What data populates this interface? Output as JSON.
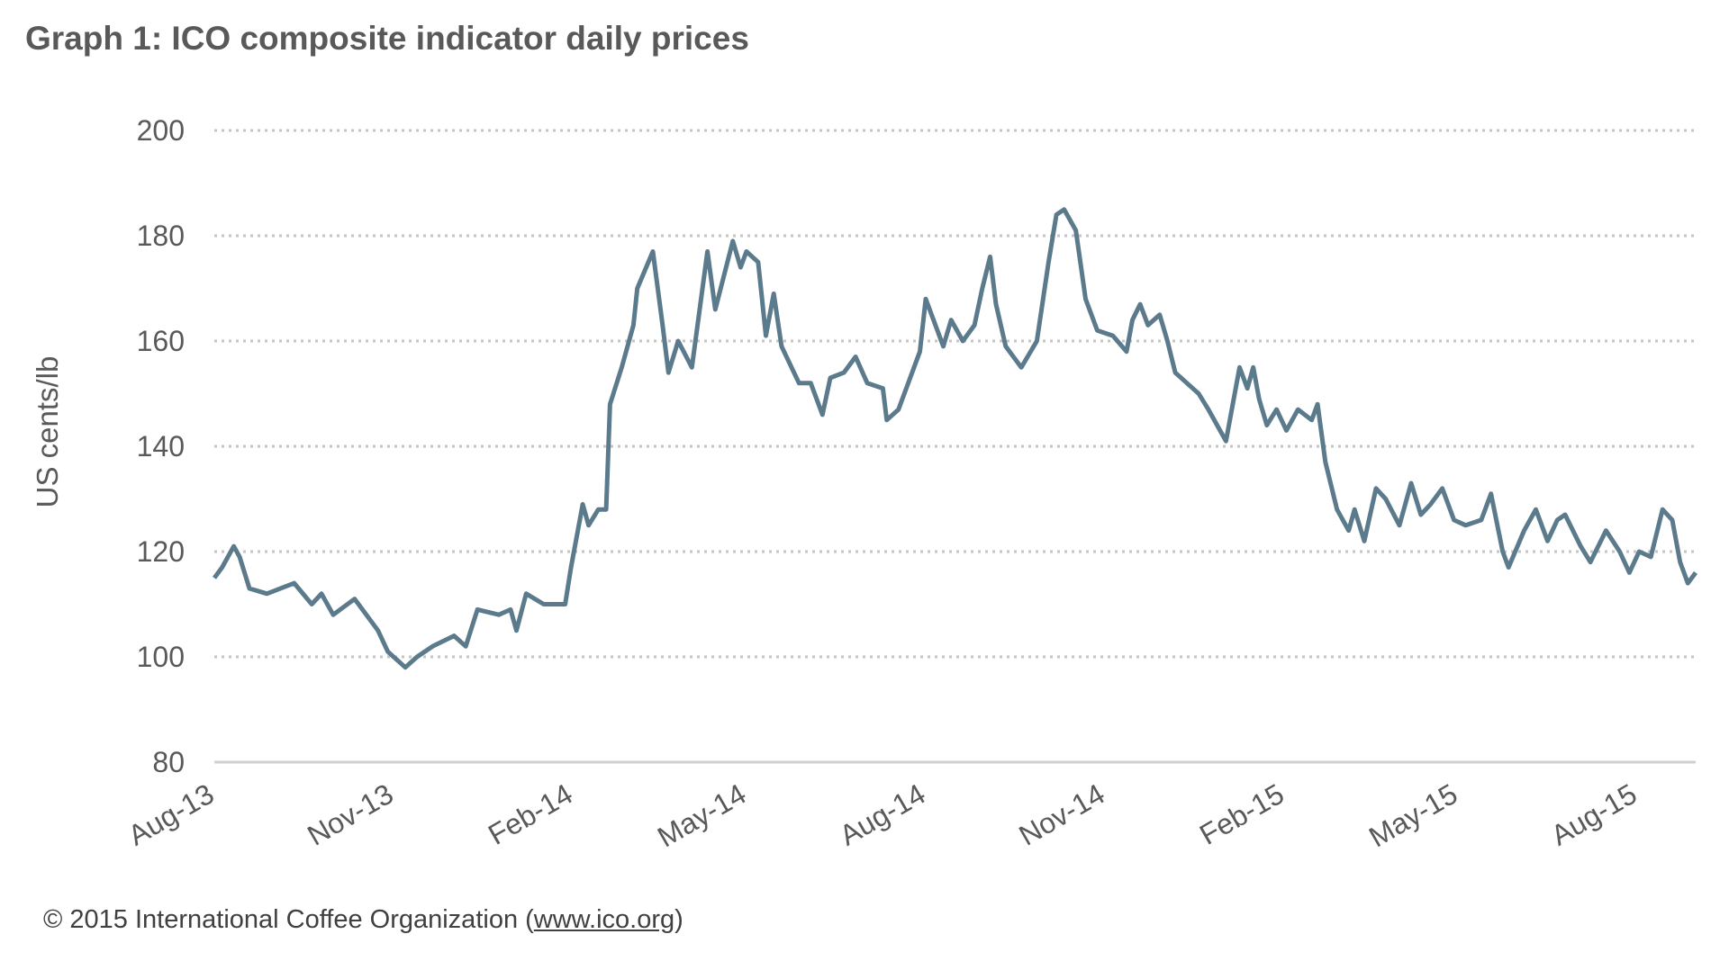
{
  "chart_data": {
    "type": "line",
    "title": "Graph 1: ICO composite indicator daily prices",
    "xlabel": "",
    "ylabel": "US cents/lb",
    "xlim": [
      "2013-08-01",
      "2015-08-31"
    ],
    "ylim": [
      80,
      200
    ],
    "yticks": [
      "80",
      "100",
      "120",
      "140",
      "160",
      "180",
      "200"
    ],
    "xticks": [
      {
        "date": "2013-08-01",
        "label": "Aug-13"
      },
      {
        "date": "2013-11-01",
        "label": "Nov-13"
      },
      {
        "date": "2014-02-01",
        "label": "Feb-14"
      },
      {
        "date": "2014-05-01",
        "label": "May-14"
      },
      {
        "date": "2014-08-01",
        "label": "Aug-14"
      },
      {
        "date": "2014-11-01",
        "label": "Nov-14"
      },
      {
        "date": "2015-02-01",
        "label": "Feb-15"
      },
      {
        "date": "2015-05-01",
        "label": "May-15"
      },
      {
        "date": "2015-08-01",
        "label": "Aug-15"
      }
    ],
    "grid": "horizontal dotted",
    "line_color": "#5b7a8c",
    "series": [
      {
        "x": [
          "2013-08-01",
          "2013-08-05",
          "2013-08-11",
          "2013-08-14",
          "2013-08-19",
          "2013-08-28",
          "2013-09-11",
          "2013-09-20",
          "2013-09-25",
          "2013-10-01",
          "2013-10-12",
          "2013-10-24",
          "2013-10-29",
          "2013-11-07",
          "2013-11-13",
          "2013-11-21",
          "2013-12-02",
          "2013-12-08",
          "2013-12-14",
          "2013-12-25",
          "2013-12-31",
          "2014-01-03",
          "2014-01-08",
          "2014-01-17",
          "2014-01-28",
          "2014-01-31",
          "2014-02-06",
          "2014-02-09",
          "2014-02-14",
          "2014-02-18",
          "2014-02-20",
          "2014-02-26",
          "2014-03-04",
          "2014-03-06",
          "2014-03-14",
          "2014-03-19",
          "2014-03-22",
          "2014-03-27",
          "2014-04-03",
          "2014-04-11",
          "2014-04-15",
          "2014-04-24",
          "2014-04-28",
          "2014-05-01",
          "2014-05-07",
          "2014-05-11",
          "2014-05-15",
          "2014-05-19",
          "2014-05-28",
          "2014-06-03",
          "2014-06-09",
          "2014-06-13",
          "2014-06-20",
          "2014-06-26",
          "2014-07-02",
          "2014-07-10",
          "2014-07-12",
          "2014-07-18",
          "2014-07-24",
          "2014-07-29",
          "2014-08-01",
          "2014-08-10",
          "2014-08-14",
          "2014-08-20",
          "2014-08-26",
          "2014-08-30",
          "2014-09-03",
          "2014-09-06",
          "2014-09-11",
          "2014-09-19",
          "2014-09-27",
          "2014-10-03",
          "2014-10-07",
          "2014-10-11",
          "2014-10-17",
          "2014-10-22",
          "2014-10-28",
          "2014-11-05",
          "2014-11-12",
          "2014-11-15",
          "2014-11-19",
          "2014-11-23",
          "2014-11-29",
          "2014-12-03",
          "2014-12-07",
          "2014-12-13",
          "2014-12-19",
          "2014-12-24",
          "2015-01-02",
          "2015-01-09",
          "2015-01-13",
          "2015-01-16",
          "2015-01-19",
          "2015-01-23",
          "2015-01-28",
          "2015-02-02",
          "2015-02-08",
          "2015-02-15",
          "2015-02-18",
          "2015-02-22",
          "2015-02-28",
          "2015-03-06",
          "2015-03-09",
          "2015-03-14",
          "2015-03-20",
          "2015-03-25",
          "2015-04-01",
          "2015-04-07",
          "2015-04-12",
          "2015-04-17",
          "2015-04-23",
          "2015-04-29",
          "2015-05-05",
          "2015-05-13",
          "2015-05-18",
          "2015-05-24",
          "2015-05-27",
          "2015-06-04",
          "2015-06-10",
          "2015-06-16",
          "2015-06-21",
          "2015-06-25",
          "2015-07-03",
          "2015-07-08",
          "2015-07-16",
          "2015-07-23",
          "2015-07-28",
          "2015-08-02",
          "2015-08-08",
          "2015-08-14",
          "2015-08-19",
          "2015-08-23",
          "2015-08-27",
          "2015-08-31"
        ],
        "y": [
          115,
          117,
          121,
          119,
          113,
          112,
          114,
          110,
          112,
          108,
          111,
          105,
          101,
          98,
          100,
          102,
          104,
          102,
          109,
          108,
          109,
          105,
          112,
          110,
          110,
          117,
          129,
          125,
          128,
          128,
          148,
          155,
          163,
          170,
          177,
          163,
          154,
          160,
          155,
          177,
          166,
          179,
          174,
          177,
          175,
          161,
          169,
          159,
          152,
          152,
          146,
          153,
          154,
          157,
          152,
          151,
          145,
          147,
          153,
          158,
          168,
          159,
          164,
          160,
          163,
          170,
          176,
          167,
          159,
          155,
          160,
          175,
          184,
          185,
          181,
          168,
          162,
          161,
          158,
          164,
          167,
          163,
          165,
          160,
          154,
          152,
          150,
          147,
          141,
          155,
          151,
          155,
          149,
          144,
          147,
          143,
          147,
          145,
          148,
          137,
          128,
          124,
          128,
          122,
          132,
          130,
          125,
          133,
          127,
          129,
          132,
          126,
          125,
          126,
          131,
          120,
          117,
          124,
          128,
          122,
          126,
          127,
          121,
          118,
          124,
          120,
          116,
          120,
          119,
          128,
          126,
          118,
          114,
          116
        ]
      }
    ]
  },
  "footer": {
    "text": "© 2015  International  Coffee  Organization  (",
    "link": "www.ico.org",
    "close": ")"
  }
}
